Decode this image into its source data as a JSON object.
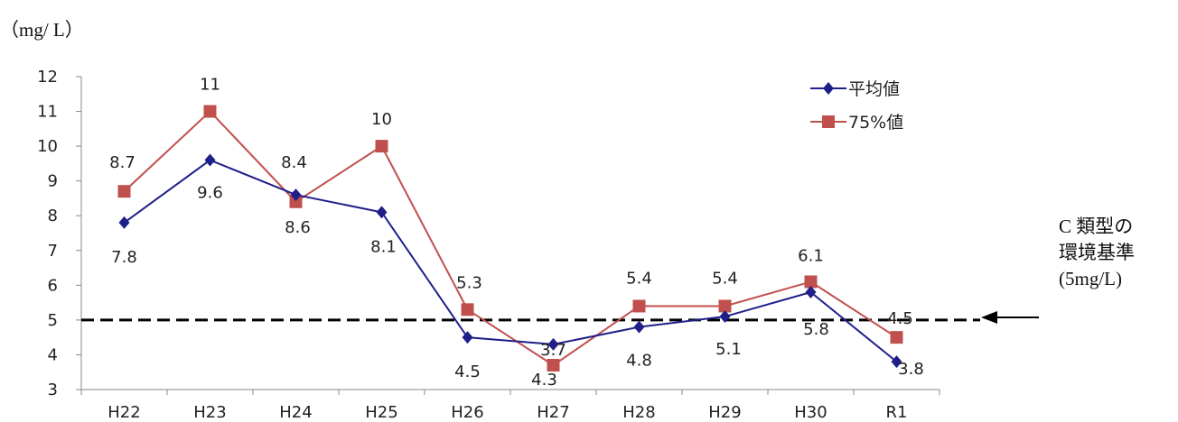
{
  "unit_label": "（mg/ L）",
  "standard_annotation": {
    "lines": [
      "C 類型の",
      "環境基準",
      "(5mg/L)"
    ],
    "arrow_icon": "left-arrow-icon"
  },
  "chart_data": {
    "type": "line",
    "categories": [
      "H22",
      "H23",
      "H24",
      "H25",
      "H26",
      "H27",
      "H28",
      "H29",
      "H30",
      "R1"
    ],
    "ylim": [
      3,
      12
    ],
    "yticks": [
      3,
      4,
      5,
      6,
      7,
      8,
      9,
      10,
      11,
      12
    ],
    "grid": false,
    "legend_position": "top-right",
    "series": [
      {
        "name": "平均値",
        "marker": "diamond",
        "color": "#1f1f8a",
        "values": [
          7.8,
          9.6,
          8.6,
          8.1,
          4.5,
          4.3,
          4.8,
          5.1,
          5.8,
          3.8
        ],
        "labels": [
          "7.8",
          "9.6",
          "8.6",
          "8.1",
          "4.5",
          "4.3",
          "4.8",
          "5.1",
          "5.8",
          "3.8"
        ]
      },
      {
        "name": "75%値",
        "marker": "square",
        "color": "#c0504d",
        "values": [
          8.7,
          11,
          8.4,
          10,
          5.3,
          3.7,
          5.4,
          5.4,
          6.1,
          4.5
        ],
        "labels": [
          "8.7",
          "11",
          "8.4",
          "10",
          "5.3",
          "3.7",
          "5.4",
          "5.4",
          "6.1",
          "4.5"
        ]
      }
    ],
    "reference_line": {
      "value": 5,
      "style": "dashed",
      "color": "#000000"
    }
  }
}
